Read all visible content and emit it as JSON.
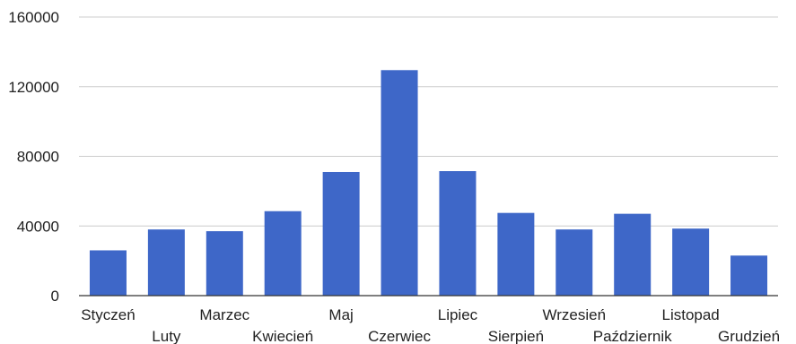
{
  "chart_data": {
    "type": "bar",
    "categories": [
      "Styczeń",
      "Luty",
      "Marzec",
      "Kwiecień",
      "Maj",
      "Czerwiec",
      "Lipiec",
      "Sierpień",
      "Wrzesień",
      "Październik",
      "Listopad",
      "Grudzień"
    ],
    "series": [
      {
        "values": [
          26000,
          38000,
          37000,
          48500,
          71000,
          129500,
          71500,
          47500,
          38000,
          47000,
          38500,
          23000
        ],
        "color": "#3e67c8"
      }
    ],
    "ylim": [
      0,
      160000
    ],
    "yticks": [
      "0",
      "40000",
      "80000",
      "120000",
      "160000"
    ],
    "grid": true,
    "legend": "none"
  }
}
